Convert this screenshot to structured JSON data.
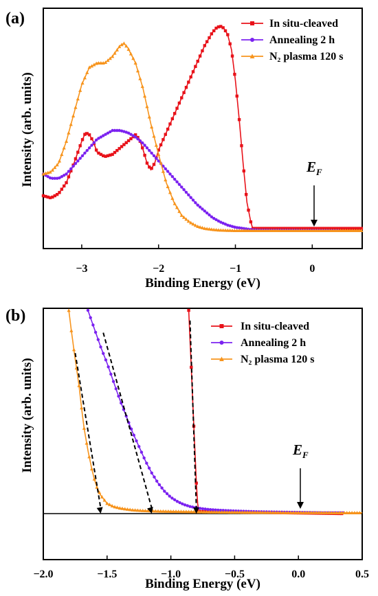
{
  "figure": {
    "panels": [
      {
        "label": "(a)",
        "ylabel": "Intensity (arb. units)",
        "xlabel": "Binding Energy (eV)",
        "ef": "E",
        "ef_sub": "F"
      },
      {
        "label": "(b)",
        "ylabel": "Intensity (arb. units)",
        "xlabel": "Binding Energy (eV)",
        "ef": "E",
        "ef_sub": "F"
      }
    ]
  },
  "chart_data": [
    {
      "type": "line",
      "panel": "(a)",
      "xlabel": "Binding Energy (eV)",
      "ylabel": "Intensity (arb. units)",
      "xlim": [
        -3.5,
        0.65
      ],
      "ylim": [
        0,
        1.0
      ],
      "ticks": [
        -3,
        -2,
        -1,
        0
      ],
      "tick_labels": [
        "−3",
        "−2",
        "−1",
        "0"
      ],
      "legend": "top-right",
      "annotation": {
        "text": "E_F",
        "x": 0
      },
      "series": [
        {
          "name": "In situ-cleaved",
          "color": "#e8121a",
          "marker": "square",
          "x": [
            -3.5,
            -3.4,
            -3.3,
            -3.2,
            -3.1,
            -3.0,
            -2.95,
            -2.9,
            -2.85,
            -2.8,
            -2.7,
            -2.6,
            -2.5,
            -2.4,
            -2.3,
            -2.25,
            -2.2,
            -2.15,
            -2.1,
            -2.05,
            -2.0,
            -1.9,
            -1.8,
            -1.7,
            -1.6,
            -1.5,
            -1.4,
            -1.3,
            -1.25,
            -1.2,
            -1.15,
            -1.1,
            -1.05,
            -1.0,
            -0.95,
            -0.9,
            -0.85,
            -0.8,
            -0.78,
            0.65
          ],
          "y": [
            0.17,
            0.16,
            0.18,
            0.23,
            0.32,
            0.42,
            0.46,
            0.45,
            0.42,
            0.37,
            0.35,
            0.36,
            0.39,
            0.42,
            0.45,
            0.43,
            0.38,
            0.32,
            0.29,
            0.32,
            0.38,
            0.46,
            0.54,
            0.62,
            0.7,
            0.78,
            0.86,
            0.92,
            0.94,
            0.95,
            0.94,
            0.91,
            0.84,
            0.7,
            0.52,
            0.32,
            0.14,
            0.05,
            0.02,
            0.02
          ]
        },
        {
          "name": "Annealing 2 h",
          "color": "#7b22f0",
          "marker": "circle",
          "x": [
            -3.5,
            -3.4,
            -3.3,
            -3.2,
            -3.1,
            -3.0,
            -2.9,
            -2.8,
            -2.7,
            -2.6,
            -2.5,
            -2.4,
            -2.3,
            -2.2,
            -2.1,
            -2.0,
            -1.9,
            -1.8,
            -1.7,
            -1.6,
            -1.5,
            -1.4,
            -1.3,
            -1.2,
            -1.1,
            -1.0,
            -0.9,
            -0.8,
            -0.7,
            0.35
          ],
          "y": [
            0.27,
            0.25,
            0.25,
            0.27,
            0.31,
            0.35,
            0.39,
            0.43,
            0.45,
            0.47,
            0.47,
            0.46,
            0.44,
            0.41,
            0.37,
            0.33,
            0.29,
            0.25,
            0.21,
            0.17,
            0.13,
            0.1,
            0.07,
            0.05,
            0.035,
            0.025,
            0.02,
            0.015,
            0.012,
            0.01
          ]
        },
        {
          "name": "N₂ plasma 120 s",
          "color": "#f7941d",
          "marker": "triangle",
          "x": [
            -3.5,
            -3.4,
            -3.3,
            -3.2,
            -3.1,
            -3.0,
            -2.9,
            -2.8,
            -2.7,
            -2.6,
            -2.5,
            -2.45,
            -2.4,
            -2.3,
            -2.2,
            -2.1,
            -2.0,
            -1.9,
            -1.8,
            -1.7,
            -1.6,
            -1.5,
            -1.4,
            -1.3,
            -1.2,
            -1.0,
            -0.8,
            0.65
          ],
          "y": [
            0.27,
            0.28,
            0.32,
            0.42,
            0.55,
            0.68,
            0.76,
            0.78,
            0.78,
            0.81,
            0.86,
            0.87,
            0.85,
            0.78,
            0.66,
            0.5,
            0.36,
            0.23,
            0.14,
            0.08,
            0.05,
            0.03,
            0.02,
            0.015,
            0.012,
            0.01,
            0.01,
            0.01
          ]
        }
      ]
    },
    {
      "type": "line",
      "panel": "(b)",
      "xlabel": "Binding Energy (eV)",
      "ylabel": "Intensity (arb. units)",
      "xlim": [
        -2.0,
        0.5
      ],
      "ylim": [
        -0.35,
        1.0
      ],
      "ticks": [
        -2.0,
        -1.5,
        -1.0,
        -0.5,
        0.0,
        0.5
      ],
      "tick_labels": [
        "−2.0",
        "−1.5",
        "−1.0",
        "−0.5",
        "0.0",
        "0.5"
      ],
      "legend": "top-right",
      "annotation": {
        "text": "E_F",
        "x": 0.0
      },
      "series": [
        {
          "name": "In situ-cleaved",
          "color": "#e8121a",
          "marker": "square",
          "x": [
            -0.86,
            -0.85,
            -0.84,
            -0.83,
            -0.82,
            -0.81,
            -0.8,
            -0.79,
            -0.78,
            0.35
          ],
          "y": [
            1.0,
            0.86,
            0.72,
            0.57,
            0.43,
            0.29,
            0.15,
            0.05,
            0.01,
            0.0
          ]
        },
        {
          "name": "Annealing 2 h",
          "color": "#7b22f0",
          "marker": "circle",
          "x": [
            -1.65,
            -1.6,
            -1.55,
            -1.5,
            -1.45,
            -1.4,
            -1.35,
            -1.3,
            -1.25,
            -1.2,
            -1.15,
            -1.1,
            -1.05,
            -1.0,
            -0.95,
            -0.9,
            -0.85,
            -0.8,
            -0.75,
            -0.7,
            -0.6,
            -0.5,
            -0.4,
            -0.3,
            -0.2,
            -0.1,
            0.0,
            0.1,
            0.2,
            0.35
          ],
          "y": [
            1.0,
            0.91,
            0.82,
            0.74,
            0.65,
            0.56,
            0.48,
            0.4,
            0.33,
            0.26,
            0.2,
            0.15,
            0.11,
            0.08,
            0.06,
            0.045,
            0.035,
            0.028,
            0.024,
            0.02,
            0.016,
            0.013,
            0.011,
            0.009,
            0.008,
            0.007,
            0.006,
            0.005,
            0.004,
            0.004
          ]
        },
        {
          "name": "N₂ plasma 120 s",
          "color": "#f7941d",
          "marker": "triangle",
          "x": [
            -1.8,
            -1.78,
            -1.75,
            -1.72,
            -1.7,
            -1.68,
            -1.65,
            -1.62,
            -1.6,
            -1.58,
            -1.55,
            -1.5,
            -1.45,
            -1.4,
            -1.35,
            -1.3,
            -1.25,
            -1.2,
            -1.1,
            -1.0,
            -0.9,
            -0.8,
            -0.7,
            -0.5,
            -0.3,
            -0.1,
            0.1,
            0.3,
            0.5
          ],
          "y": [
            1.0,
            0.9,
            0.76,
            0.63,
            0.52,
            0.42,
            0.31,
            0.22,
            0.17,
            0.13,
            0.09,
            0.05,
            0.035,
            0.027,
            0.022,
            0.018,
            0.016,
            0.014,
            0.012,
            0.011,
            0.01,
            0.009,
            0.008,
            0.007,
            0.006,
            0.005,
            0.005,
            0.004,
            0.004
          ]
        }
      ],
      "tangent_lines": [
        {
          "color": "#000000",
          "style": "dashed",
          "from": [
            -1.75,
            0.79
          ],
          "to": [
            -1.55,
            0.0
          ]
        },
        {
          "color": "#000000",
          "style": "dashed",
          "from": [
            -1.53,
            0.89
          ],
          "to": [
            -1.15,
            0.0
          ]
        },
        {
          "color": "#000000",
          "style": "dashed",
          "from": [
            -0.85,
            0.95
          ],
          "to": [
            -0.8,
            0.0
          ]
        }
      ]
    }
  ]
}
